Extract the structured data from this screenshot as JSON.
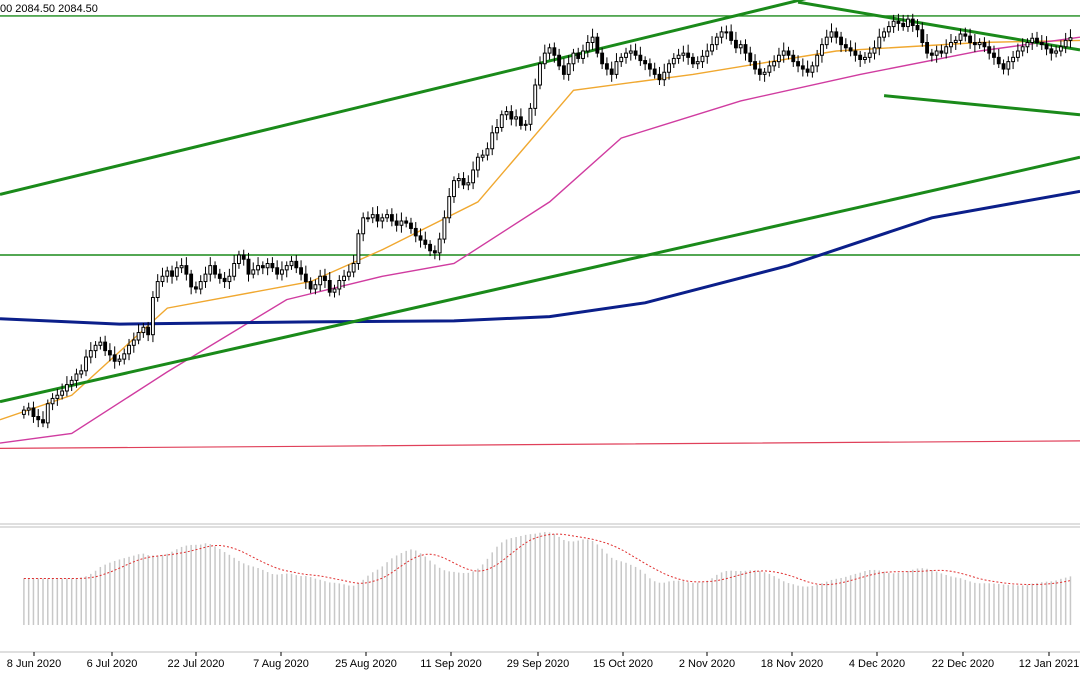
{
  "chart_data": {
    "type": "candlestick",
    "instrument_header": "00 2084.50 2084.50",
    "x_tick_labels": [
      "8 Jun 2020",
      "6 Jul 2020",
      "22 Jul 2020",
      "7 Aug 2020",
      "25 Aug 2020",
      "11 Sep 2020",
      "29 Sep 2020",
      "15 Oct 2020",
      "2 Nov 2020",
      "18 Nov 2020",
      "4 Dec 2020",
      "22 Dec 2020",
      "12 Jan 2021"
    ],
    "ylim": [
      1640,
      2120
    ],
    "x_range_days": [
      -5,
      221
    ],
    "closes": [
      {
        "d": 0,
        "c": 1734
      },
      {
        "d": 1,
        "c": 1736
      },
      {
        "d": 2,
        "c": 1728
      },
      {
        "d": 3,
        "c": 1725
      },
      {
        "d": 4,
        "c": 1722
      },
      {
        "d": 5,
        "c": 1740
      },
      {
        "d": 6,
        "c": 1745
      },
      {
        "d": 7,
        "c": 1748
      },
      {
        "d": 8,
        "c": 1752
      },
      {
        "d": 9,
        "c": 1758
      },
      {
        "d": 10,
        "c": 1762
      },
      {
        "d": 11,
        "c": 1768
      },
      {
        "d": 12,
        "c": 1771
      },
      {
        "d": 13,
        "c": 1784
      },
      {
        "d": 14,
        "c": 1790
      },
      {
        "d": 15,
        "c": 1795
      },
      {
        "d": 16,
        "c": 1798
      },
      {
        "d": 17,
        "c": 1790
      },
      {
        "d": 18,
        "c": 1786
      },
      {
        "d": 19,
        "c": 1780
      },
      {
        "d": 20,
        "c": 1782
      },
      {
        "d": 21,
        "c": 1787
      },
      {
        "d": 22,
        "c": 1795
      },
      {
        "d": 23,
        "c": 1800
      },
      {
        "d": 24,
        "c": 1807
      },
      {
        "d": 25,
        "c": 1812
      },
      {
        "d": 26,
        "c": 1805
      },
      {
        "d": 27,
        "c": 1840
      },
      {
        "d": 28,
        "c": 1855
      },
      {
        "d": 29,
        "c": 1860
      },
      {
        "d": 30,
        "c": 1865
      },
      {
        "d": 31,
        "c": 1860
      },
      {
        "d": 32,
        "c": 1868
      },
      {
        "d": 33,
        "c": 1870
      },
      {
        "d": 34,
        "c": 1862
      },
      {
        "d": 35,
        "c": 1850
      },
      {
        "d": 36,
        "c": 1848
      },
      {
        "d": 37,
        "c": 1855
      },
      {
        "d": 38,
        "c": 1862
      },
      {
        "d": 39,
        "c": 1870
      },
      {
        "d": 40,
        "c": 1862
      },
      {
        "d": 41,
        "c": 1858
      },
      {
        "d": 42,
        "c": 1855
      },
      {
        "d": 43,
        "c": 1860
      },
      {
        "d": 44,
        "c": 1872
      },
      {
        "d": 45,
        "c": 1880
      },
      {
        "d": 46,
        "c": 1876
      },
      {
        "d": 47,
        "c": 1862
      },
      {
        "d": 48,
        "c": 1866
      },
      {
        "d": 49,
        "c": 1870
      },
      {
        "d": 50,
        "c": 1868
      },
      {
        "d": 51,
        "c": 1872
      },
      {
        "d": 52,
        "c": 1868
      },
      {
        "d": 53,
        "c": 1862
      },
      {
        "d": 54,
        "c": 1866
      },
      {
        "d": 55,
        "c": 1870
      },
      {
        "d": 56,
        "c": 1874
      },
      {
        "d": 57,
        "c": 1868
      },
      {
        "d": 58,
        "c": 1862
      },
      {
        "d": 59,
        "c": 1855
      },
      {
        "d": 60,
        "c": 1848
      },
      {
        "d": 61,
        "c": 1852
      },
      {
        "d": 62,
        "c": 1860
      },
      {
        "d": 63,
        "c": 1856
      },
      {
        "d": 64,
        "c": 1845
      },
      {
        "d": 65,
        "c": 1848
      },
      {
        "d": 66,
        "c": 1856
      },
      {
        "d": 67,
        "c": 1860
      },
      {
        "d": 68,
        "c": 1864
      },
      {
        "d": 69,
        "c": 1872
      },
      {
        "d": 70,
        "c": 1900
      },
      {
        "d": 71,
        "c": 1915
      },
      {
        "d": 72,
        "c": 1915
      },
      {
        "d": 73,
        "c": 1918
      },
      {
        "d": 74,
        "c": 1912
      },
      {
        "d": 75,
        "c": 1915
      },
      {
        "d": 76,
        "c": 1918
      },
      {
        "d": 77,
        "c": 1912
      },
      {
        "d": 78,
        "c": 1908
      },
      {
        "d": 79,
        "c": 1912
      },
      {
        "d": 80,
        "c": 1910
      },
      {
        "d": 81,
        "c": 1905
      },
      {
        "d": 82,
        "c": 1898
      },
      {
        "d": 83,
        "c": 1894
      },
      {
        "d": 84,
        "c": 1890
      },
      {
        "d": 85,
        "c": 1884
      },
      {
        "d": 86,
        "c": 1882
      },
      {
        "d": 87,
        "c": 1895
      },
      {
        "d": 88,
        "c": 1915
      },
      {
        "d": 89,
        "c": 1935
      },
      {
        "d": 90,
        "c": 1950
      },
      {
        "d": 91,
        "c": 1952
      },
      {
        "d": 92,
        "c": 1946
      },
      {
        "d": 93,
        "c": 1948
      },
      {
        "d": 94,
        "c": 1960
      },
      {
        "d": 95,
        "c": 1972
      },
      {
        "d": 96,
        "c": 1974
      },
      {
        "d": 97,
        "c": 1980
      },
      {
        "d": 98,
        "c": 1995
      },
      {
        "d": 99,
        "c": 2000
      },
      {
        "d": 100,
        "c": 2012
      },
      {
        "d": 101,
        "c": 2015
      },
      {
        "d": 102,
        "c": 2008
      },
      {
        "d": 103,
        "c": 2010
      },
      {
        "d": 104,
        "c": 2002
      },
      {
        "d": 105,
        "c": 2003
      },
      {
        "d": 106,
        "c": 2018
      },
      {
        "d": 107,
        "c": 2040
      },
      {
        "d": 108,
        "c": 2060
      },
      {
        "d": 109,
        "c": 2070
      },
      {
        "d": 110,
        "c": 2075
      },
      {
        "d": 111,
        "c": 2068
      },
      {
        "d": 112,
        "c": 2058
      },
      {
        "d": 113,
        "c": 2050
      },
      {
        "d": 114,
        "c": 2060
      },
      {
        "d": 115,
        "c": 2070
      },
      {
        "d": 116,
        "c": 2065
      },
      {
        "d": 117,
        "c": 2072
      },
      {
        "d": 118,
        "c": 2080
      },
      {
        "d": 119,
        "c": 2085
      },
      {
        "d": 120,
        "c": 2070
      },
      {
        "d": 121,
        "c": 2060
      },
      {
        "d": 122,
        "c": 2055
      },
      {
        "d": 123,
        "c": 2050
      },
      {
        "d": 124,
        "c": 2062
      },
      {
        "d": 125,
        "c": 2066
      },
      {
        "d": 126,
        "c": 2070
      },
      {
        "d": 127,
        "c": 2072
      },
      {
        "d": 128,
        "c": 2068
      },
      {
        "d": 129,
        "c": 2063
      },
      {
        "d": 130,
        "c": 2060
      },
      {
        "d": 131,
        "c": 2055
      },
      {
        "d": 132,
        "c": 2050
      },
      {
        "d": 133,
        "c": 2045
      },
      {
        "d": 134,
        "c": 2052
      },
      {
        "d": 135,
        "c": 2060
      },
      {
        "d": 136,
        "c": 2065
      },
      {
        "d": 137,
        "c": 2068
      },
      {
        "d": 138,
        "c": 2070
      },
      {
        "d": 139,
        "c": 2066
      },
      {
        "d": 140,
        "c": 2060
      },
      {
        "d": 141,
        "c": 2062
      },
      {
        "d": 142,
        "c": 2067
      },
      {
        "d": 143,
        "c": 2072
      },
      {
        "d": 144,
        "c": 2078
      },
      {
        "d": 145,
        "c": 2085
      },
      {
        "d": 146,
        "c": 2090
      },
      {
        "d": 147,
        "c": 2090
      },
      {
        "d": 148,
        "c": 2082
      },
      {
        "d": 149,
        "c": 2075
      },
      {
        "d": 150,
        "c": 2078
      },
      {
        "d": 151,
        "c": 2070
      },
      {
        "d": 152,
        "c": 2062
      },
      {
        "d": 153,
        "c": 2055
      },
      {
        "d": 154,
        "c": 2050
      },
      {
        "d": 155,
        "c": 2052
      },
      {
        "d": 156,
        "c": 2058
      },
      {
        "d": 157,
        "c": 2062
      },
      {
        "d": 158,
        "c": 2068
      },
      {
        "d": 159,
        "c": 2072
      },
      {
        "d": 160,
        "c": 2068
      },
      {
        "d": 161,
        "c": 2062
      },
      {
        "d": 162,
        "c": 2058
      },
      {
        "d": 163,
        "c": 2055
      },
      {
        "d": 164,
        "c": 2052
      },
      {
        "d": 165,
        "c": 2058
      },
      {
        "d": 166,
        "c": 2068
      },
      {
        "d": 167,
        "c": 2078
      },
      {
        "d": 168,
        "c": 2085
      },
      {
        "d": 169,
        "c": 2090
      },
      {
        "d": 170,
        "c": 2085
      },
      {
        "d": 171,
        "c": 2078
      },
      {
        "d": 172,
        "c": 2075
      },
      {
        "d": 173,
        "c": 2072
      },
      {
        "d": 174,
        "c": 2068
      },
      {
        "d": 175,
        "c": 2064
      },
      {
        "d": 176,
        "c": 2066
      },
      {
        "d": 177,
        "c": 2070
      },
      {
        "d": 178,
        "c": 2075
      },
      {
        "d": 179,
        "c": 2085
      },
      {
        "d": 180,
        "c": 2090
      },
      {
        "d": 181,
        "c": 2095
      },
      {
        "d": 182,
        "c": 2100
      },
      {
        "d": 183,
        "c": 2098
      },
      {
        "d": 184,
        "c": 2095
      },
      {
        "d": 185,
        "c": 2102
      },
      {
        "d": 186,
        "c": 2096
      },
      {
        "d": 187,
        "c": 2092
      },
      {
        "d": 188,
        "c": 2080
      },
      {
        "d": 189,
        "c": 2070
      },
      {
        "d": 190,
        "c": 2068
      },
      {
        "d": 191,
        "c": 2072
      },
      {
        "d": 192,
        "c": 2070
      },
      {
        "d": 193,
        "c": 2076
      },
      {
        "d": 194,
        "c": 2080
      },
      {
        "d": 195,
        "c": 2082
      },
      {
        "d": 196,
        "c": 2088
      },
      {
        "d": 197,
        "c": 2086
      },
      {
        "d": 198,
        "c": 2080
      },
      {
        "d": 199,
        "c": 2078
      },
      {
        "d": 200,
        "c": 2080
      },
      {
        "d": 201,
        "c": 2076
      },
      {
        "d": 202,
        "c": 2070
      },
      {
        "d": 203,
        "c": 2066
      },
      {
        "d": 204,
        "c": 2060
      },
      {
        "d": 205,
        "c": 2055
      },
      {
        "d": 206,
        "c": 2062
      },
      {
        "d": 207,
        "c": 2066
      },
      {
        "d": 208,
        "c": 2072
      },
      {
        "d": 209,
        "c": 2076
      },
      {
        "d": 210,
        "c": 2080
      },
      {
        "d": 211,
        "c": 2084
      },
      {
        "d": 212,
        "c": 2080
      },
      {
        "d": 213,
        "c": 2078
      },
      {
        "d": 214,
        "c": 2074
      },
      {
        "d": 215,
        "c": 2070
      },
      {
        "d": 216,
        "c": 2072
      },
      {
        "d": 217,
        "c": 2076
      },
      {
        "d": 218,
        "c": 2082
      },
      {
        "d": 219,
        "c": 2084.5
      }
    ],
    "moving_averages": [
      {
        "color": "#f0a830",
        "points": [
          [
            -5,
            1725
          ],
          [
            10,
            1748
          ],
          [
            30,
            1830
          ],
          [
            60,
            1855
          ],
          [
            75,
            1885
          ],
          [
            95,
            1930
          ],
          [
            115,
            2035
          ],
          [
            140,
            2050
          ],
          [
            170,
            2072
          ],
          [
            200,
            2080
          ],
          [
            221,
            2082
          ]
        ]
      },
      {
        "color": "#d03ca0",
        "points": [
          [
            -5,
            1703
          ],
          [
            10,
            1712
          ],
          [
            30,
            1770
          ],
          [
            55,
            1838
          ],
          [
            75,
            1860
          ],
          [
            90,
            1872
          ],
          [
            110,
            1930
          ],
          [
            125,
            1990
          ],
          [
            150,
            2025
          ],
          [
            175,
            2050
          ],
          [
            200,
            2072
          ],
          [
            221,
            2085
          ]
        ]
      },
      {
        "color": "#0b1f8a",
        "points": [
          [
            -5,
            1820
          ],
          [
            20,
            1815
          ],
          [
            60,
            1817
          ],
          [
            90,
            1818
          ],
          [
            110,
            1822
          ],
          [
            130,
            1835
          ],
          [
            160,
            1870
          ],
          [
            190,
            1915
          ],
          [
            221,
            1940
          ]
        ]
      },
      {
        "color": "#e0405a",
        "points": [
          [
            -5,
            1698
          ],
          [
            60,
            1700
          ],
          [
            120,
            1702
          ],
          [
            221,
            1705
          ]
        ]
      }
    ],
    "horizontal_lines": [
      {
        "color": "#1a8a1a",
        "y": 2105
      },
      {
        "color": "#1a8a1a",
        "y": 1880
      }
    ],
    "trend_lines": [
      {
        "color": "#1a8a1a",
        "from": [
          -5,
          1742
        ],
        "to": [
          221,
          1972
        ]
      },
      {
        "color": "#1a8a1a",
        "from": [
          -5,
          1937
        ],
        "to": [
          221,
          2184
        ]
      },
      {
        "color": "#1a8a1a",
        "from": [
          162,
          2118
        ],
        "to": [
          221,
          2073
        ]
      },
      {
        "color": "#1a8a1a",
        "from": [
          180,
          2030
        ],
        "to": [
          221,
          2012
        ]
      }
    ],
    "oscillator": {
      "histogram_color": "#c8c8c8",
      "signal_color": "#e03030"
    }
  }
}
